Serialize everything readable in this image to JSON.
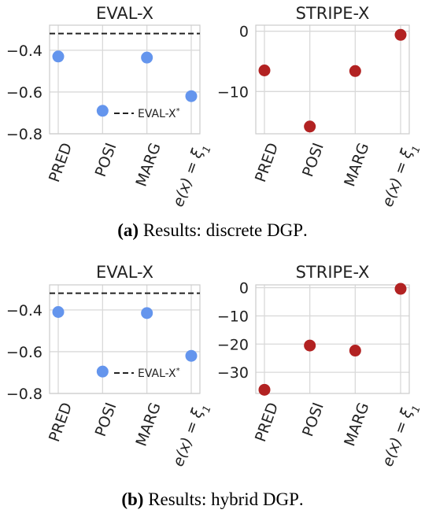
{
  "figure": {
    "caption_a": {
      "tag": "(a)",
      "text": "Results: discrete",
      "sc": "DGP",
      "end": "."
    },
    "caption_b": {
      "tag": "(b)",
      "text": "Results: hybrid",
      "sc": "DGP",
      "end": "."
    }
  },
  "chart_data": [
    {
      "type": "scatter",
      "title": "EVAL-X",
      "categories": [
        "PRED",
        "POSI",
        "MARG",
        "e(x) = ξ1"
      ],
      "values": [
        -0.43,
        -0.69,
        -0.435,
        -0.62
      ],
      "ylim": [
        -0.8,
        -0.28
      ],
      "yticks": [
        -0.4,
        -0.6,
        -0.8
      ],
      "reference_line": {
        "label": "EVAL-X*",
        "value": -0.32,
        "style": "dashed"
      },
      "legend_position": "lower-right",
      "color": "#6495ed",
      "grid": true
    },
    {
      "type": "scatter",
      "title": "STRIPE-X",
      "categories": [
        "PRED",
        "POSI",
        "MARG",
        "e(x) = ξ1"
      ],
      "values": [
        -6.5,
        -15.8,
        -6.6,
        -0.6
      ],
      "ylim": [
        -17,
        1
      ],
      "yticks": [
        0,
        -10
      ],
      "color": "#b22222",
      "grid": true
    },
    {
      "type": "scatter",
      "title": "EVAL-X",
      "categories": [
        "PRED",
        "POSI",
        "MARG",
        "e(x) = ξ1"
      ],
      "values": [
        -0.41,
        -0.695,
        -0.415,
        -0.62
      ],
      "ylim": [
        -0.8,
        -0.28
      ],
      "yticks": [
        -0.4,
        -0.6,
        -0.8
      ],
      "reference_line": {
        "label": "EVAL-X*",
        "value": -0.32,
        "style": "dashed"
      },
      "legend_position": "lower-right",
      "color": "#6495ed",
      "grid": true
    },
    {
      "type": "scatter",
      "title": "STRIPE-X",
      "categories": [
        "PRED",
        "POSI",
        "MARG",
        "e(x) = ξ1"
      ],
      "values": [
        -36.2,
        -20.5,
        -22.3,
        -0.4
      ],
      "ylim": [
        -37.5,
        1
      ],
      "yticks": [
        0,
        -10,
        -20,
        -30
      ],
      "color": "#b22222",
      "grid": true
    }
  ]
}
